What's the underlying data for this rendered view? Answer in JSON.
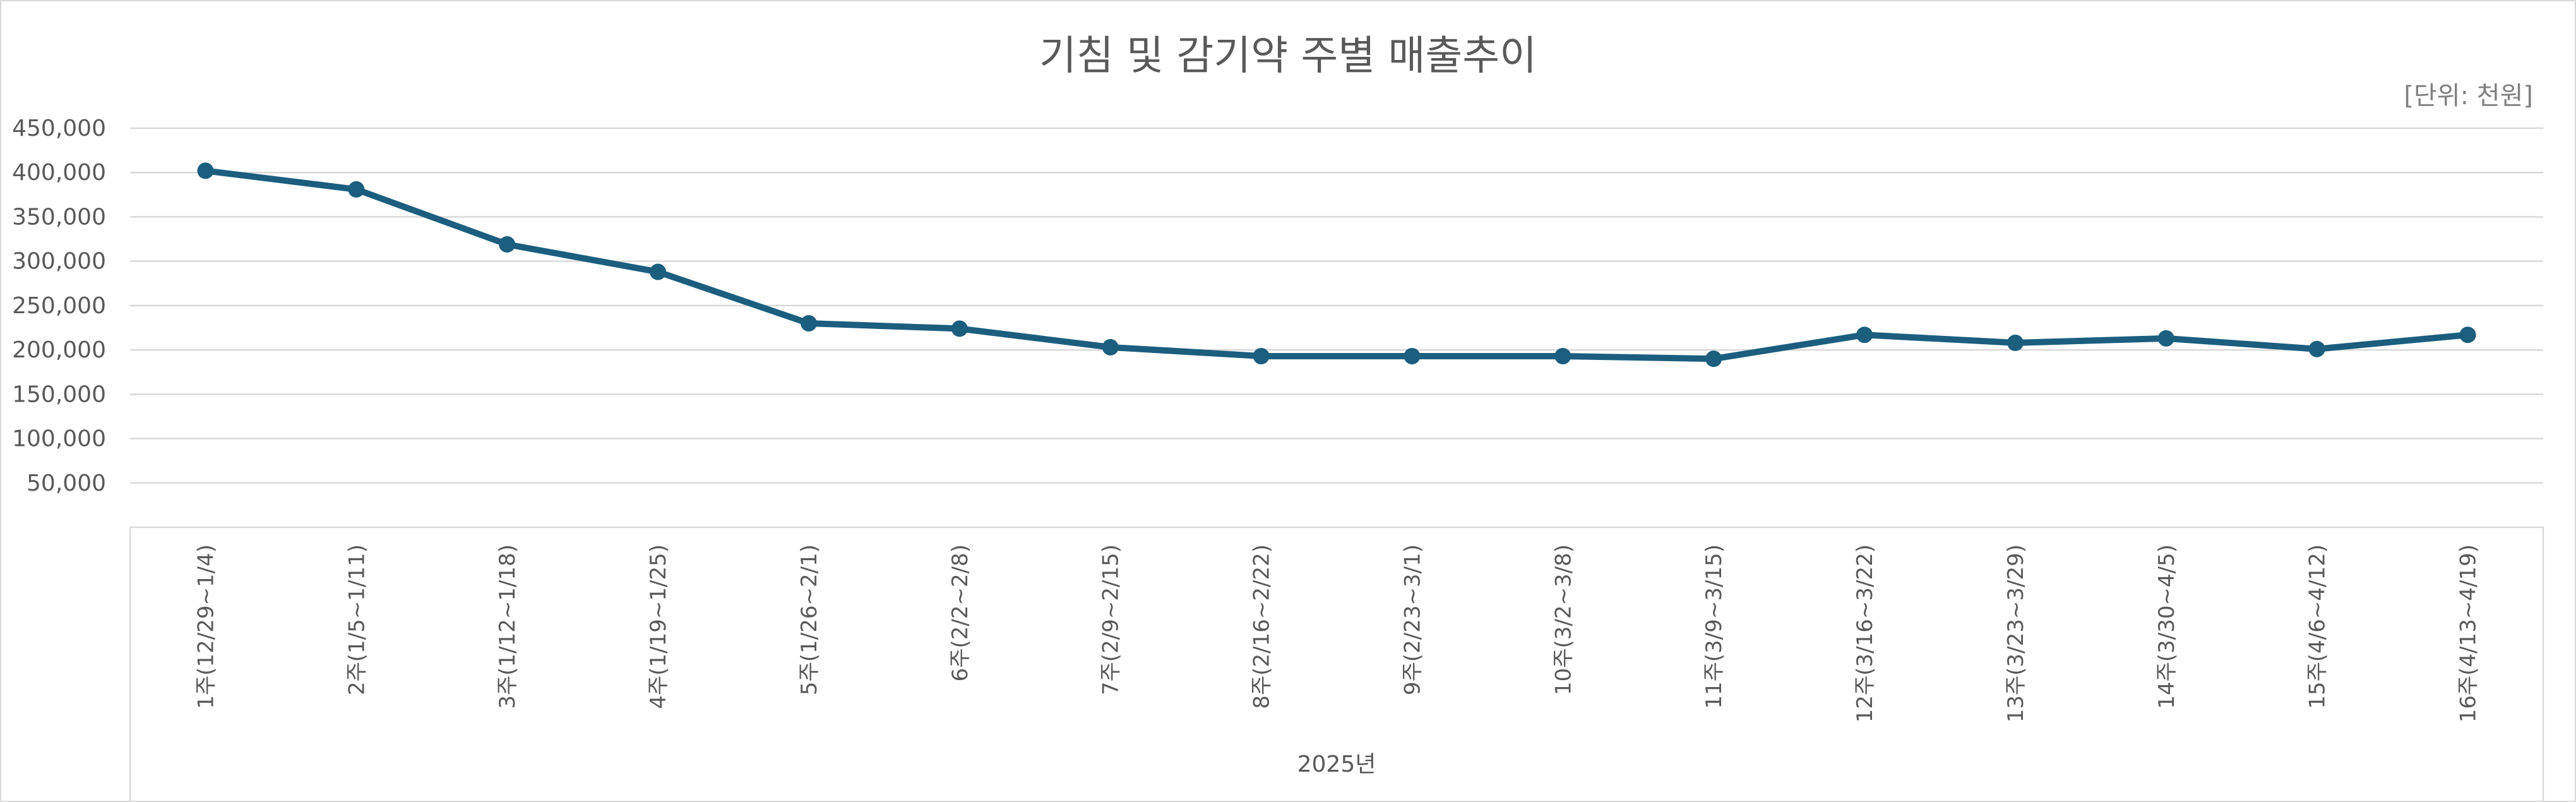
{
  "chart_data": {
    "type": "line",
    "title": "기침 및 감기약 주별 매출추이",
    "unit_label": "[단위: 천원]",
    "xlabel": "2025년",
    "ylabel": "",
    "ylim": [
      0,
      450000
    ],
    "ytick_values": [
      50000,
      100000,
      150000,
      200000,
      250000,
      300000,
      350000,
      400000,
      450000
    ],
    "ytick_labels": [
      "50,000",
      "100,000",
      "150,000",
      "200,000",
      "250,000",
      "300,000",
      "350,000",
      "400,000",
      "450,000"
    ],
    "grid": true,
    "legend": "none",
    "categories": [
      "1주(12/29~1/4)",
      "2주(1/5~1/11)",
      "3주(1/12~1/18)",
      "4주(1/19~1/25)",
      "5주(1/26~2/1)",
      "6주(2/2~2/8)",
      "7주(2/9~2/15)",
      "8주(2/16~2/22)",
      "9주(2/23~3/1)",
      "10주(3/2~3/8)",
      "11주(3/9~3/15)",
      "12주(3/16~3/22)",
      "13주(3/23~3/29)",
      "14주(3/30~4/5)",
      "15주(4/6~4/12)",
      "16주(4/13~4/19)"
    ],
    "series": [
      {
        "name": "매출",
        "color": "#1b5e7e",
        "values": [
          402000,
          381000,
          319000,
          288000,
          230000,
          224000,
          203000,
          193000,
          193000,
          193000,
          190000,
          217000,
          208000,
          213000,
          201000,
          217000
        ]
      }
    ]
  }
}
